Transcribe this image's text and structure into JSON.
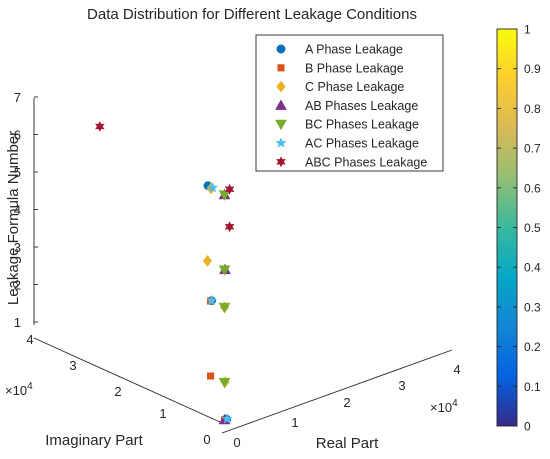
{
  "chart_data": {
    "type": "scatter",
    "title": "Data Distribution for Different Leakage Conditions",
    "xlabel": "Real Part",
    "ylabel": "Imaginary Part",
    "zlabel": "Leakage Formula Number",
    "x_exponent": "×10",
    "x_exponent_power": "4",
    "y_exponent": "×10",
    "y_exponent_power": "4",
    "xlim": [
      0,
      4.5
    ],
    "ylim": [
      0,
      4
    ],
    "zlim": [
      1,
      7
    ],
    "x_ticks": [
      "0",
      "1",
      "2",
      "3",
      "4"
    ],
    "y_ticks": [
      "0",
      "1",
      "2",
      "3",
      "4"
    ],
    "z_ticks": [
      "1",
      "2",
      "3",
      "4",
      "5",
      "6",
      "7"
    ],
    "legend_position": "top-right",
    "colorbar": {
      "range": [
        0,
        1
      ],
      "ticks": [
        "0",
        "0.1",
        "0.2",
        "0.3",
        "0.4",
        "0.5",
        "0.6",
        "0.7",
        "0.8",
        "0.9",
        "1"
      ],
      "colormap": "parula"
    },
    "series": [
      {
        "name": "A Phase Leakage",
        "marker": "circle",
        "color": "#0072BD",
        "points": [
          [
            0.05,
            0,
            1
          ],
          [
            0.03,
            0.3,
            4
          ],
          [
            0.05,
            0.4,
            7
          ]
        ]
      },
      {
        "name": "B Phase Leakage",
        "marker": "square",
        "color": "#D95319",
        "points": [
          [
            0.01,
            0,
            1
          ],
          [
            0.01,
            0.3,
            2
          ],
          [
            0.01,
            0.3,
            4
          ]
        ]
      },
      {
        "name": "C Phase Leakage",
        "marker": "diamond",
        "color": "#EDB120",
        "points": [
          [
            0.02,
            0,
            2
          ],
          [
            0.01,
            0,
            4
          ],
          [
            0.04,
            0.4,
            5
          ],
          [
            0.02,
            0.3,
            7
          ]
        ]
      },
      {
        "name": "AB Phases Leakage",
        "marker": "triangle-up",
        "color": "#7E2F8E",
        "points": [
          [
            0.01,
            0,
            1
          ],
          [
            0.02,
            0,
            5
          ],
          [
            0.01,
            0,
            7
          ]
        ]
      },
      {
        "name": "BC Phases Leakage",
        "marker": "triangle-down",
        "color": "#77AC30",
        "points": [
          [
            0.01,
            0,
            2
          ],
          [
            0.01,
            0,
            4
          ],
          [
            0.01,
            0,
            5
          ],
          [
            0.01,
            0,
            7
          ]
        ]
      },
      {
        "name": "AC Phases Leakage",
        "marker": "pentagram",
        "color": "#4DBEEE",
        "points": [
          [
            0.06,
            0,
            1
          ],
          [
            0.03,
            0.3,
            4
          ],
          [
            0.05,
            0.3,
            7
          ]
        ]
      },
      {
        "name": "ABC Phases Leakage",
        "marker": "hexagram",
        "color": "#A2142F",
        "points": [
          [
            0.2,
            0.1,
            6
          ],
          [
            0.2,
            0.1,
            7
          ],
          [
            3.6,
            0.3,
            7
          ],
          [
            0.3,
            3.0,
            7
          ]
        ]
      }
    ]
  }
}
